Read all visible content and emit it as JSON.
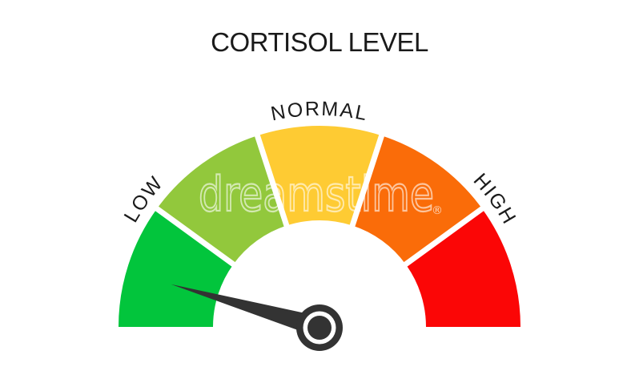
{
  "title": "CORTISOL LEVEL",
  "watermark": {
    "text": "dreamstime",
    "registered": "®",
    "color": "#FFFFFF"
  },
  "chart_data": {
    "type": "gauge",
    "title": "CORTISOL LEVEL",
    "orientation": "semicircle-180deg",
    "background": "#FFFFFF",
    "zones": [
      {
        "name": "low",
        "label": "LOW",
        "color": "#02C53C",
        "start_deg": 0,
        "end_deg": 36
      },
      {
        "name": "low-normal",
        "label": "",
        "color": "#92C83C",
        "start_deg": 36,
        "end_deg": 72
      },
      {
        "name": "normal",
        "label": "NORMAL",
        "color": "#FECB33",
        "start_deg": 72,
        "end_deg": 108
      },
      {
        "name": "normal-high",
        "label": "",
        "color": "#FA6C09",
        "start_deg": 108,
        "end_deg": 144
      },
      {
        "name": "high",
        "label": "HIGH",
        "color": "#FB0606",
        "start_deg": 144,
        "end_deg": 180
      }
    ],
    "zone_labels": [
      {
        "text": "LOW",
        "deg_from_low_end": 36
      },
      {
        "text": "NORMAL",
        "deg_from_low_end": 90
      },
      {
        "text": "HIGH",
        "deg_from_low_end": 144
      }
    ],
    "divider_color": "#FFFFFF",
    "label_color": "#1B1B1B",
    "needle": {
      "deg_from_low_end": 16,
      "color": "#333333",
      "reading_zone": "LOW"
    }
  }
}
